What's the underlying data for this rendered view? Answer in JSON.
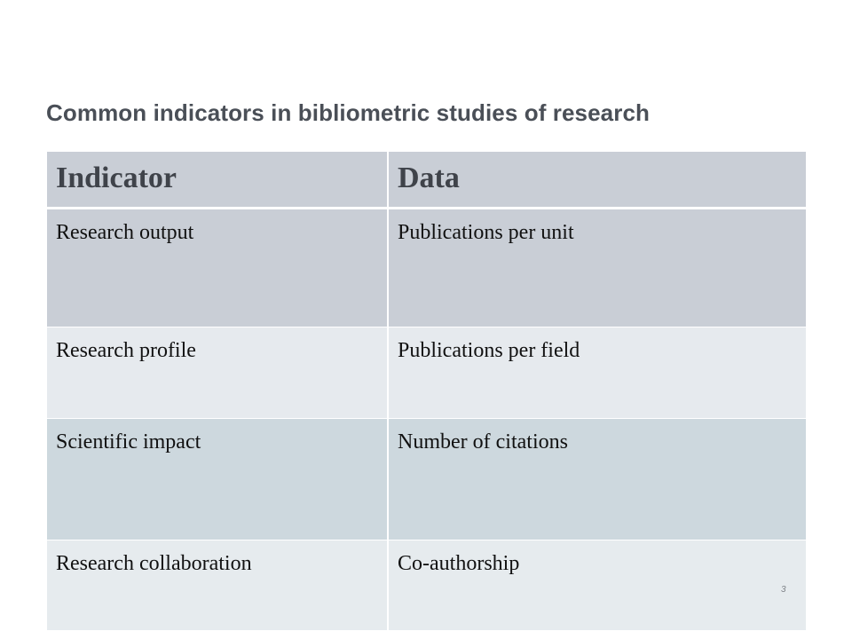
{
  "slide": {
    "title": "Common indicators in bibliometric studies of research",
    "page_number": "3"
  },
  "table": {
    "headers": [
      "Indicator",
      "Data"
    ],
    "rows": [
      {
        "indicator": "Research output",
        "data": "Publications per unit"
      },
      {
        "indicator": "Research profile",
        "data": "Publications per field"
      },
      {
        "indicator": "Scientific impact",
        "data": "Number of citations"
      },
      {
        "indicator": "Research collaboration",
        "data": "Co-authorship"
      }
    ]
  },
  "colors": {
    "header_bg": "#c9ced6",
    "row_dark": "#c9ced6",
    "row_light": "#e6eaee",
    "row_blue": "#cdd8de",
    "title_text": "#4a4f57"
  }
}
